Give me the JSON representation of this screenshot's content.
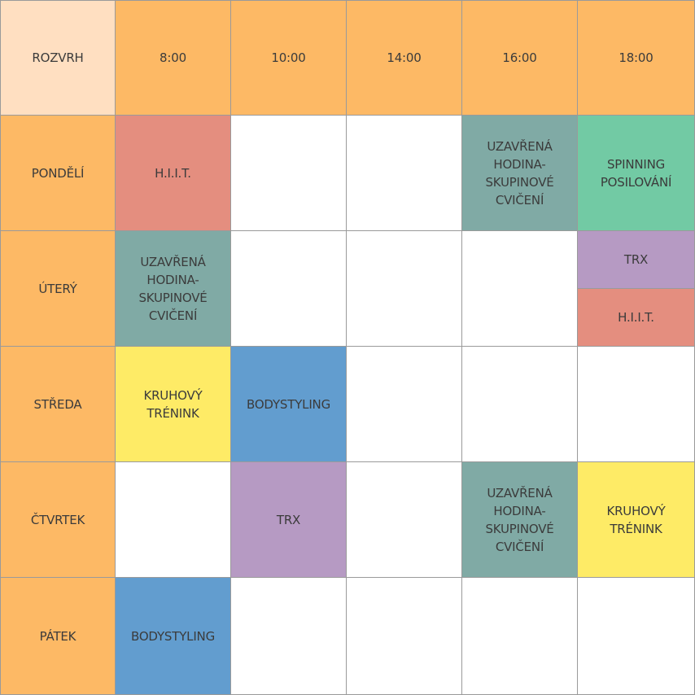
{
  "colors": {
    "corner": "#ffdfc1",
    "header": "#fdb965",
    "hiit": "#e48e7f",
    "uzavrena": "#80aaa5",
    "spinning": "#72caa4",
    "trx": "#b69ac3",
    "kruhovy": "#feeb66",
    "bodystyling": "#629dcf",
    "empty": "#ffffff"
  },
  "header": {
    "corner": "ROZVRH",
    "times": [
      "8:00",
      "10:00",
      "14:00",
      "16:00",
      "18:00"
    ]
  },
  "rows": [
    {
      "day": "PONDĚLÍ",
      "cells": [
        {
          "text": "H.I.I.T.",
          "color": "hiit"
        },
        {
          "text": "",
          "color": "empty"
        },
        {
          "text": "",
          "color": "empty"
        },
        {
          "text": "UZAVŘENÁ\nHODINA-\nSKUPINOVÉ\nCVIČENÍ",
          "color": "uzavrena"
        },
        {
          "text": "SPINNING\nPOSILOVÁNÍ",
          "color": "spinning"
        }
      ]
    },
    {
      "day": "ÚTERÝ",
      "cells": [
        {
          "text": "UZAVŘENÁ\nHODINA-\nSKUPINOVÉ\nCVIČENÍ",
          "color": "uzavrena"
        },
        {
          "text": "",
          "color": "empty"
        },
        {
          "text": "",
          "color": "empty"
        },
        {
          "text": "",
          "color": "empty"
        },
        {
          "split": [
            {
              "text": "TRX",
              "color": "trx"
            },
            {
              "text": "H.I.I.T.",
              "color": "hiit"
            }
          ]
        }
      ]
    },
    {
      "day": "STŘEDA",
      "cells": [
        {
          "text": "KRUHOVÝ\nTRÉNINK",
          "color": "kruhovy"
        },
        {
          "text": "BODYSTYLING",
          "color": "bodystyling"
        },
        {
          "text": "",
          "color": "empty"
        },
        {
          "text": "",
          "color": "empty"
        },
        {
          "text": "",
          "color": "empty"
        }
      ]
    },
    {
      "day": "ČTVRTEK",
      "cells": [
        {
          "text": "",
          "color": "empty"
        },
        {
          "text": "TRX",
          "color": "trx"
        },
        {
          "text": "",
          "color": "empty"
        },
        {
          "text": "UZAVŘENÁ\nHODINA-\nSKUPINOVÉ\nCVIČENÍ",
          "color": "uzavrena"
        },
        {
          "text": "KRUHOVÝ\nTRÉNINK",
          "color": "kruhovy"
        }
      ]
    },
    {
      "day": "PÁTEK",
      "cells": [
        {
          "text": "BODYSTYLING",
          "color": "bodystyling"
        },
        {
          "text": "",
          "color": "empty"
        },
        {
          "text": "",
          "color": "empty"
        },
        {
          "text": "",
          "color": "empty"
        },
        {
          "text": "",
          "color": "empty"
        }
      ]
    }
  ]
}
